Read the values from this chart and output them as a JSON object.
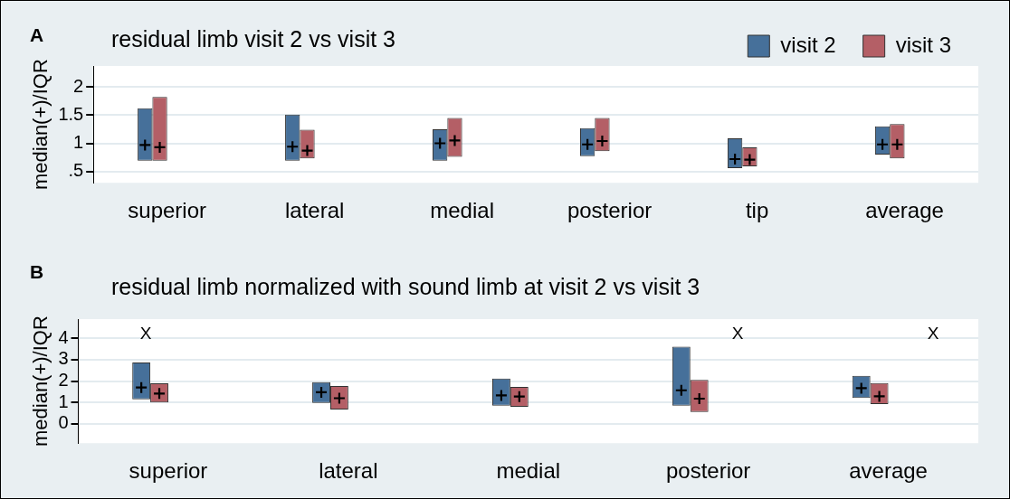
{
  "chart_data": [
    {
      "type": "bar",
      "title": "residual limb visit 2 vs visit 3",
      "ylabel": "median(+)/IQR",
      "categories": [
        "superior",
        "lateral",
        "medial",
        "posterior",
        "tip",
        "average"
      ],
      "series": [
        {
          "name": "visit 2",
          "color": "#46709a",
          "values": [
            0.93,
            0.82,
            0.56,
            0.5,
            0.53,
            0.5
          ],
          "base": [
            0.69,
            0.69,
            0.69,
            0.77,
            0.56,
            0.8
          ]
        },
        {
          "name": "visit 3",
          "color": "#b45f66",
          "values": [
            1.13,
            0.51,
            0.69,
            0.59,
            0.34,
            0.61
          ],
          "base": [
            0.69,
            0.73,
            0.76,
            0.86,
            0.59,
            0.73
          ]
        },
        {
          "type": "scatter",
          "color": "#000000",
          "marker": "cross",
          "x": [
            "superior",
            "lateral",
            "medial",
            "posterior",
            "tip",
            "average"
          ],
          "values": [
            0.97,
            0.94,
            1.0,
            0.98,
            0.72,
            0.98
          ]
        },
        {
          "type": "scatter",
          "color": "#000000",
          "marker": "cross",
          "x": [
            "superior",
            "lateral",
            "medial",
            "posterior",
            "tip",
            "average"
          ],
          "values": [
            0.93,
            0.87,
            1.05,
            1.04,
            0.71,
            0.98
          ]
        }
      ],
      "ylim": [
        0.3,
        2.37
      ],
      "yticks": [
        {
          "value": 0.5,
          "label": ".5"
        },
        1,
        1.5,
        2
      ],
      "grid": "y",
      "legend": "top right",
      "annotations": [
        "A"
      ]
    },
    {
      "type": "bar",
      "title": "residual limb normalized with sound limb at visit 2 vs visit 3",
      "ylabel": "median(+)/IQR",
      "categories": [
        "superior",
        "lateral",
        "medial",
        "posterior",
        "average"
      ],
      "series": [
        {
          "color": "#46709a",
          "values": [
            1.72,
            0.97,
            1.27,
            2.76,
            1.04
          ],
          "base": [
            1.15,
            0.98,
            0.85,
            0.85,
            1.21
          ]
        },
        {
          "color": "#b45f66",
          "values": [
            0.9,
            1.1,
            0.93,
            1.5,
            0.98
          ],
          "base": [
            1.0,
            0.67,
            0.8,
            0.56,
            0.93
          ]
        },
        {
          "type": "scatter",
          "color": "#000000",
          "marker": "cross",
          "x": [
            "superior",
            "lateral",
            "medial",
            "posterior",
            "average"
          ],
          "values": [
            1.7,
            1.48,
            1.33,
            1.57,
            1.67
          ]
        },
        {
          "type": "scatter",
          "color": "#000000",
          "marker": "cross",
          "x": [
            "superior",
            "lateral",
            "medial",
            "posterior",
            "average"
          ],
          "values": [
            1.42,
            1.2,
            1.28,
            1.18,
            1.29
          ]
        }
      ],
      "ylim": [
        -0.9,
        4.9
      ],
      "yticks": [
        0,
        1,
        2,
        3,
        4
      ],
      "grid": "y",
      "legend": false,
      "annotations": [
        "B",
        "X",
        "X",
        "X"
      ]
    }
  ]
}
